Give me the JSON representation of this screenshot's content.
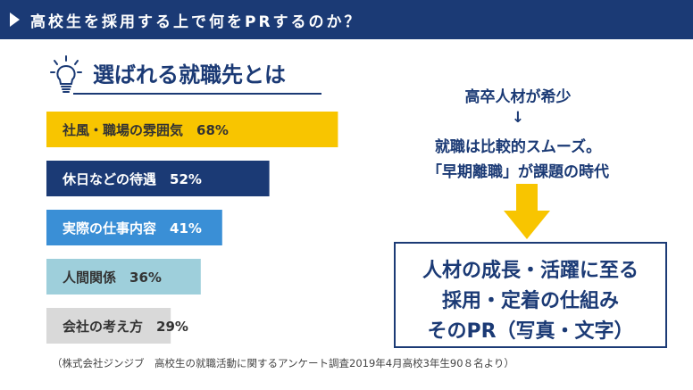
{
  "header": {
    "title": "高校生を採用する上で何をPRするのか？"
  },
  "section": {
    "title": "選ばれる就職先とは",
    "icon": "lightbulb-icon"
  },
  "chart_data": {
    "type": "bar",
    "orientation": "horizontal",
    "categories": [
      "社風・職場の雰囲気",
      "休日などの待遇",
      "実際の仕事内容",
      "人間関係",
      "会社の考え方"
    ],
    "values": [
      68,
      52,
      41,
      36,
      29
    ],
    "value_labels": [
      "68%",
      "52%",
      "41%",
      "36%",
      "29%"
    ],
    "colors": [
      "#f8c500",
      "#1b3a75",
      "#3a8fd6",
      "#9ecfdb",
      "#d9d9d9"
    ],
    "text_colors": [
      "#333333",
      "#ffffff",
      "#ffffff",
      "#333333",
      "#333333"
    ]
  },
  "right_panel": {
    "line1": "高卒人材が希少",
    "arrow": "↓",
    "line2": "就職は比較的スムーズ。",
    "line3": "「早期離職」が課題の時代"
  },
  "highlight": {
    "line1": "人材の成長・活躍に至る",
    "line2": "採用・定着の仕組み",
    "line3": "そのPR（写真・文字）"
  },
  "source": {
    "text": "（株式会社ジンジブ　高校生の就職活動に関するアンケート調査2019年4月高校3年生90８名より）"
  },
  "colors": {
    "navy": "#1b3a75",
    "yellow": "#f8c500"
  }
}
